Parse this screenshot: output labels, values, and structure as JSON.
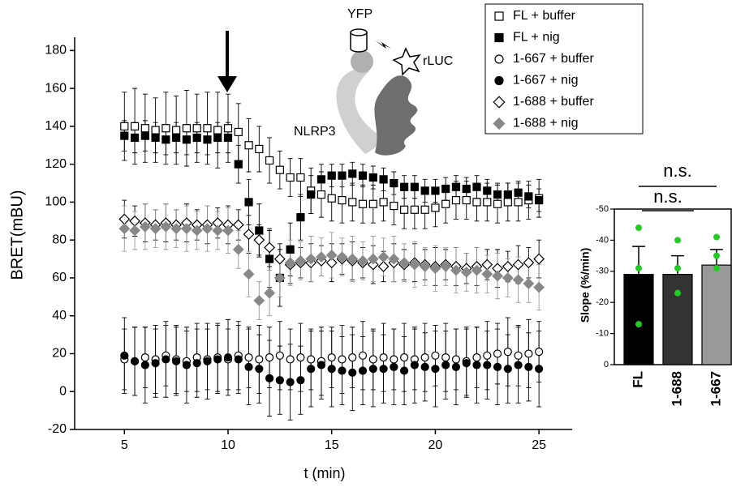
{
  "chart_data": [
    {
      "type": "scatter",
      "xlabel": "t (min)",
      "ylabel": "BRET(mBU)",
      "annotations": [
        "YFP",
        "rLUC",
        "NLRP3"
      ],
      "xlim": [
        2.6,
        26.6
      ],
      "xticks": [
        5,
        10,
        15,
        20,
        25
      ],
      "ylim": [
        -20,
        187
      ],
      "yticks": [
        -20,
        0,
        20,
        40,
        60,
        80,
        100,
        120,
        140,
        160,
        180
      ],
      "x": [
        5,
        5.5,
        6,
        6.5,
        7,
        7.5,
        8,
        8.5,
        9,
        9.5,
        10,
        10.5,
        11,
        11.5,
        12,
        12.5,
        13,
        13.5,
        14,
        14.5,
        15,
        15.5,
        16,
        16.5,
        17,
        17.5,
        18,
        18.5,
        19,
        19.5,
        20,
        20.5,
        21,
        21.5,
        22,
        22.5,
        23,
        23.5,
        24,
        24.5,
        25
      ],
      "series": [
        {
          "name": "FL + buffer",
          "color": "#000000",
          "marker": "square",
          "filled": false,
          "values": [
            140,
            140,
            139,
            138,
            139,
            138,
            139,
            139,
            139,
            138,
            139,
            137,
            130,
            128,
            122,
            117,
            113,
            113,
            106,
            104,
            102,
            101,
            100,
            99,
            99,
            100,
            98,
            96,
            96,
            96,
            97,
            99,
            101,
            101,
            100,
            100,
            99,
            100,
            100,
            101,
            102
          ],
          "errors": [
            18,
            20,
            18,
            17,
            19,
            18,
            20,
            18,
            19,
            20,
            18,
            15,
            14,
            12,
            12,
            10,
            10,
            10,
            12,
            12,
            12,
            12,
            10,
            10,
            10,
            10,
            10,
            10,
            10,
            10,
            10,
            10,
            10,
            10,
            10,
            10,
            10,
            10,
            10,
            10,
            10
          ]
        },
        {
          "name": "FL + nig",
          "color": "#000000",
          "marker": "square",
          "filled": true,
          "values": [
            135,
            134,
            135,
            134,
            133,
            134,
            133,
            134,
            133,
            134,
            134,
            120,
            100,
            85,
            70,
            60,
            75,
            92,
            104,
            112,
            114,
            114,
            115,
            114,
            113,
            112,
            110,
            108,
            108,
            106,
            106,
            107,
            108,
            107,
            108,
            106,
            104,
            104,
            105,
            103,
            101
          ],
          "errors": [
            8,
            8,
            8,
            8,
            8,
            8,
            8,
            8,
            8,
            8,
            8,
            10,
            12,
            14,
            15,
            15,
            14,
            12,
            10,
            8,
            6,
            6,
            6,
            6,
            6,
            6,
            6,
            6,
            6,
            6,
            6,
            6,
            6,
            6,
            6,
            6,
            6,
            6,
            6,
            6,
            6
          ]
        },
        {
          "name": "1-667 + buffer",
          "color": "#000000",
          "marker": "circle",
          "filled": false,
          "values": [
            17,
            16,
            18,
            17,
            19,
            17,
            16,
            18,
            17,
            18,
            17,
            19,
            18,
            17,
            18,
            19,
            17,
            18,
            17,
            16,
            18,
            17,
            18,
            19,
            17,
            18,
            17,
            18,
            17,
            18,
            19,
            18,
            17,
            16,
            18,
            19,
            20,
            21,
            19,
            20,
            21
          ],
          "errors": [
            16,
            18,
            16,
            18,
            16,
            18,
            16,
            18,
            16,
            18,
            16,
            18,
            16,
            18,
            16,
            18,
            16,
            18,
            16,
            18,
            16,
            18,
            16,
            18,
            16,
            18,
            16,
            18,
            16,
            18,
            16,
            18,
            16,
            18,
            16,
            18,
            16,
            18,
            16,
            18,
            16
          ]
        },
        {
          "name": "1-667 + nig",
          "color": "#000000",
          "marker": "circle",
          "filled": true,
          "values": [
            19,
            16,
            14,
            15,
            17,
            16,
            14,
            15,
            16,
            17,
            18,
            17,
            13,
            12,
            7,
            6,
            5,
            6,
            12,
            14,
            12,
            11,
            10,
            11,
            12,
            12,
            13,
            11,
            14,
            13,
            12,
            14,
            13,
            15,
            14,
            14,
            13,
            12,
            14,
            13,
            12
          ],
          "errors": [
            20,
            18,
            20,
            18,
            20,
            18,
            20,
            18,
            20,
            18,
            20,
            18,
            20,
            18,
            20,
            18,
            20,
            18,
            20,
            18,
            20,
            18,
            20,
            18,
            20,
            18,
            20,
            18,
            20,
            18,
            20,
            18,
            20,
            18,
            20,
            18,
            20,
            18,
            20,
            18,
            20
          ]
        },
        {
          "name": "1-688 + buffer",
          "color": "#000000",
          "marker": "diamond",
          "filled": false,
          "values": [
            91,
            90,
            89,
            88,
            89,
            88,
            89,
            88,
            88,
            89,
            88,
            88,
            83,
            80,
            76,
            70,
            67,
            68,
            68,
            69,
            68,
            70,
            69,
            68,
            67,
            66,
            68,
            67,
            68,
            67,
            66,
            67,
            66,
            65,
            66,
            67,
            65,
            66,
            67,
            68,
            70
          ],
          "errors": [
            10,
            8,
            10,
            8,
            10,
            8,
            10,
            8,
            10,
            8,
            10,
            8,
            10,
            8,
            10,
            8,
            10,
            8,
            10,
            8,
            10,
            8,
            10,
            8,
            10,
            8,
            10,
            8,
            10,
            8,
            10,
            8,
            10,
            8,
            10,
            8,
            10,
            8,
            10,
            8,
            10
          ]
        },
        {
          "name": "1-688 + nig",
          "color": "#888888",
          "marker": "diamond",
          "filled": true,
          "values": [
            86,
            85,
            87,
            86,
            87,
            86,
            86,
            85,
            86,
            85,
            85,
            75,
            62,
            48,
            52,
            60,
            68,
            69,
            70,
            71,
            72,
            71,
            70,
            69,
            70,
            71,
            70,
            68,
            67,
            66,
            65,
            66,
            64,
            63,
            64,
            62,
            61,
            60,
            59,
            57,
            55
          ],
          "errors": [
            12,
            10,
            12,
            10,
            12,
            10,
            12,
            10,
            12,
            10,
            12,
            10,
            12,
            10,
            12,
            10,
            12,
            10,
            12,
            10,
            12,
            10,
            12,
            10,
            12,
            10,
            12,
            10,
            12,
            10,
            12,
            10,
            12,
            10,
            12,
            10,
            12,
            10,
            12,
            10,
            12
          ]
        }
      ]
    },
    {
      "type": "bar",
      "ylabel": "Slope (%/min)",
      "categories": [
        "FL",
        "1-688",
        "1-667"
      ],
      "values": [
        -29,
        -29,
        -32
      ],
      "errors": [
        9,
        6,
        5
      ],
      "points": [
        [
          -44,
          -31,
          -13
        ],
        [
          -40,
          -31,
          -23
        ],
        [
          -41,
          -35,
          -31
        ]
      ],
      "colors": [
        "#000000",
        "#333333",
        "#999999"
      ],
      "point_color": "#22cc22",
      "ylim": [
        0,
        -50
      ],
      "yticks": [
        -50,
        -40,
        -30,
        -20,
        -10,
        0
      ],
      "significance": [
        "n.s.",
        "n.s."
      ]
    }
  ]
}
